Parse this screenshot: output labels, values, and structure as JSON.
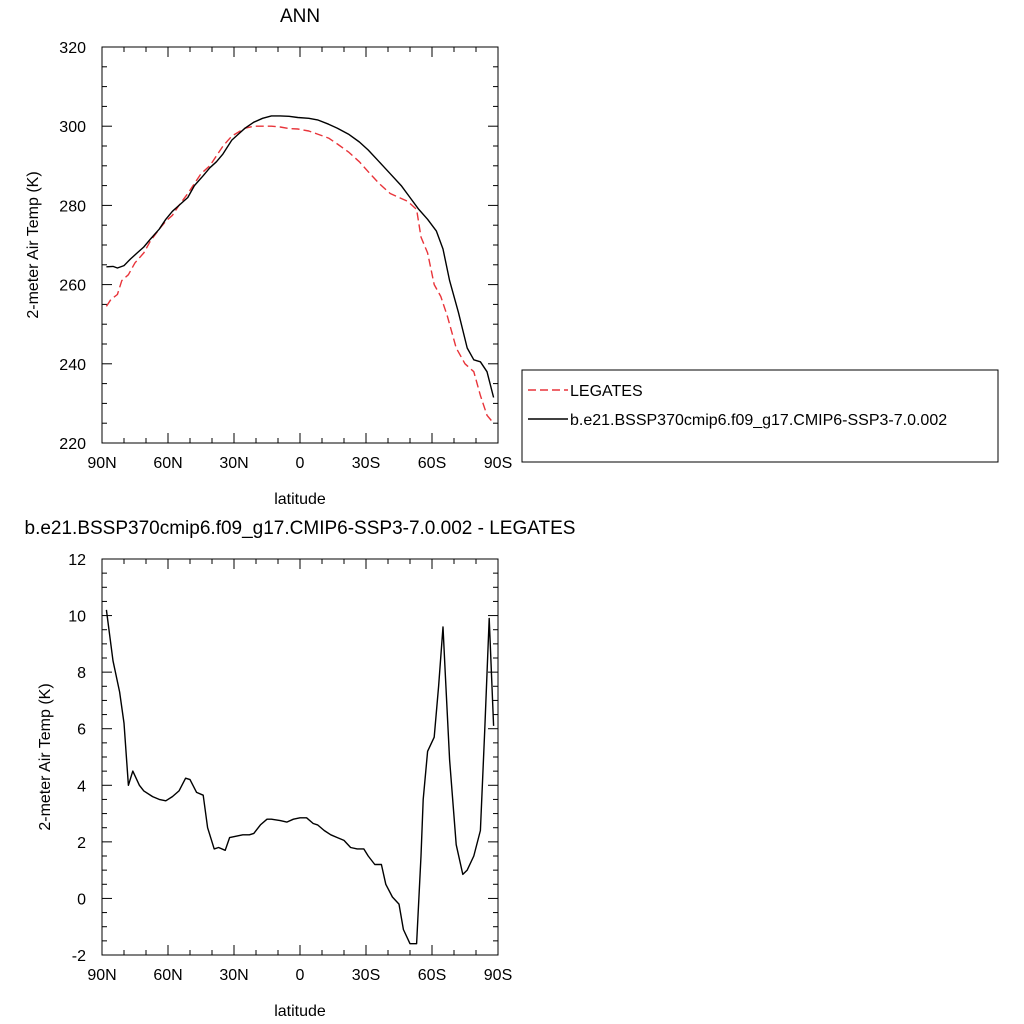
{
  "chart_data": [
    {
      "type": "line",
      "title": "ANN",
      "xlabel": "latitude",
      "ylabel": "2-meter Air Temp (K)",
      "xlim": [
        90,
        -90
      ],
      "ylim": [
        220,
        320
      ],
      "xticks": [
        90,
        60,
        30,
        0,
        -30,
        -60,
        -90
      ],
      "xtick_labels": [
        "90N",
        "60N",
        "30N",
        "0",
        "30S",
        "60S",
        "90S"
      ],
      "yticks": [
        220,
        240,
        260,
        280,
        300,
        320
      ],
      "ytick_labels": [
        "220",
        "240",
        "260",
        "280",
        "300",
        "320"
      ],
      "grid": false,
      "legend_position": "outside-right",
      "series": [
        {
          "name": "LEGATES",
          "color": "#e8343a",
          "dash": "dashed",
          "x": [
            88,
            86,
            83,
            81,
            78,
            75,
            71,
            68,
            64,
            61,
            58,
            55,
            51,
            48,
            45,
            41,
            38,
            35,
            31,
            28,
            25,
            21,
            17,
            13,
            9,
            5,
            1,
            -4,
            -8,
            -13,
            -17,
            -22,
            -27,
            -31,
            -36,
            -41,
            -45,
            -49,
            -53,
            -55,
            -58,
            -61,
            -64,
            -67,
            -71,
            -75,
            -79,
            -82,
            -85,
            -88
          ],
          "values": [
            254.5,
            256.2,
            257.5,
            261,
            262.5,
            265.5,
            268,
            271,
            274,
            276,
            277.5,
            280,
            283,
            285.5,
            288,
            290,
            292.5,
            295,
            297.5,
            298.5,
            299.5,
            300,
            300,
            300,
            299.8,
            299.4,
            299.3,
            298.8,
            298,
            297,
            295.5,
            293.5,
            291,
            288.5,
            285.5,
            283,
            282,
            281,
            279,
            272,
            268,
            260,
            257,
            252,
            244,
            240,
            238,
            232,
            227,
            225
          ]
        },
        {
          "name": "b.e21.BSSP370cmip6.f09_g17.CMIP6-SSP3-7.0.002",
          "color": "#000000",
          "dash": "solid",
          "x": [
            88,
            85,
            83,
            80,
            77,
            74,
            71,
            68,
            64,
            61,
            58,
            55,
            51,
            48,
            44,
            41,
            38,
            35,
            31,
            28,
            25,
            21,
            17,
            13,
            9,
            5,
            1,
            -4,
            -8,
            -13,
            -17,
            -22,
            -27,
            -31,
            -36,
            -41,
            -46,
            -50,
            -54,
            -58,
            -62,
            -65,
            -68,
            -72,
            -76,
            -79,
            -82,
            -85,
            -88
          ],
          "values": [
            264.5,
            264.6,
            264.2,
            264.8,
            266.5,
            268,
            269.5,
            271.5,
            274,
            276.5,
            278.5,
            280,
            282,
            285,
            287.5,
            289.5,
            291,
            293,
            296.5,
            298,
            299.5,
            301,
            302,
            302.6,
            302.6,
            302.5,
            302.2,
            302,
            301.6,
            300.5,
            299.5,
            298,
            296,
            294,
            291,
            288,
            285,
            282,
            279,
            276.5,
            273.5,
            269,
            261,
            253,
            244,
            241,
            240.5,
            238,
            231.5
          ]
        }
      ]
    },
    {
      "type": "line",
      "title": "b.e21.BSSP370cmip6.f09_g17.CMIP6-SSP3-7.0.002 - LEGATES",
      "xlabel": "latitude",
      "ylabel": "2-meter Air Temp (K)",
      "xlim": [
        90,
        -90
      ],
      "ylim": [
        -2,
        12
      ],
      "xticks": [
        90,
        60,
        30,
        0,
        -30,
        -60,
        -90
      ],
      "xtick_labels": [
        "90N",
        "60N",
        "30N",
        "0",
        "30S",
        "60S",
        "90S"
      ],
      "yticks": [
        -2,
        0,
        2,
        4,
        6,
        8,
        10,
        12
      ],
      "ytick_labels": [
        "-2",
        "0",
        "2",
        "4",
        "6",
        "8",
        "10",
        "12"
      ],
      "grid": false,
      "series": [
        {
          "color": "#000000",
          "dash": "solid",
          "x": [
            88,
            85,
            82,
            80,
            78,
            76,
            73,
            71,
            67,
            64,
            61,
            58,
            55,
            52,
            50,
            47,
            44,
            42,
            39,
            37,
            34,
            32,
            29,
            26,
            23,
            21,
            18,
            15,
            13,
            9,
            6,
            3,
            0,
            -3,
            -6,
            -8,
            -11,
            -14,
            -17,
            -20,
            -23,
            -26,
            -29,
            -31,
            -34,
            -37,
            -39,
            -42,
            -45,
            -47,
            -50,
            -53,
            -55,
            -56,
            -58,
            -61,
            -63,
            -65,
            -66,
            -68,
            -71,
            -74,
            -76,
            -79,
            -82,
            -84,
            -86,
            -87,
            -88
          ],
          "values": [
            10.2,
            8.4,
            7.3,
            6.2,
            4.0,
            4.5,
            4.0,
            3.8,
            3.6,
            3.5,
            3.45,
            3.6,
            3.8,
            4.25,
            4.2,
            3.75,
            3.65,
            2.5,
            1.75,
            1.8,
            1.7,
            2.15,
            2.2,
            2.25,
            2.25,
            2.3,
            2.6,
            2.8,
            2.8,
            2.75,
            2.7,
            2.8,
            2.85,
            2.85,
            2.65,
            2.6,
            2.4,
            2.25,
            2.15,
            2.05,
            1.8,
            1.75,
            1.75,
            1.5,
            1.2,
            1.2,
            0.5,
            0.05,
            -0.2,
            -1.1,
            -1.6,
            -1.6,
            1.5,
            3.5,
            5.2,
            5.7,
            7.5,
            9.6,
            8.0,
            4.9,
            1.9,
            0.85,
            1.0,
            1.5,
            2.4,
            6.0,
            9.9,
            8.0,
            6.1
          ]
        }
      ]
    }
  ]
}
